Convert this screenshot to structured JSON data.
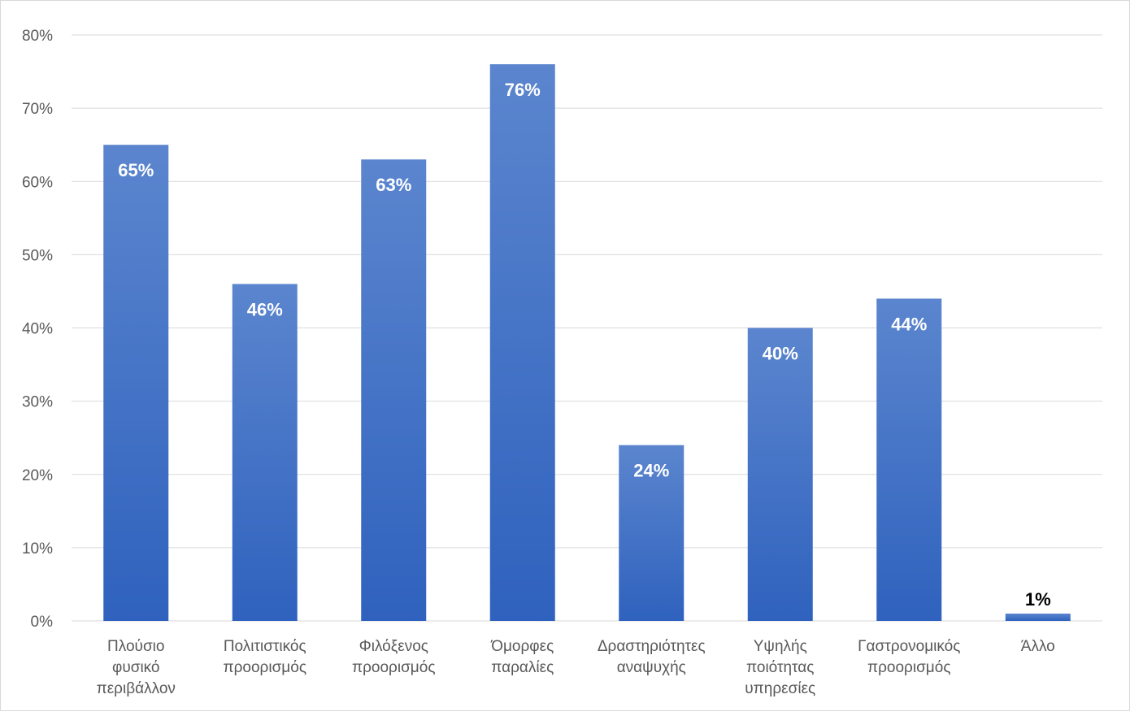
{
  "chart_data": {
    "type": "bar",
    "categories": [
      [
        "Πλούσιο",
        "φυσικό",
        "περιβάλλον"
      ],
      [
        "Πολιτιστικός",
        "προορισμός"
      ],
      [
        "Φιλόξενος",
        "προορισμός"
      ],
      [
        "Όμορφες",
        "παραλίες"
      ],
      [
        "Δραστηριότητες",
        "αναψυχής"
      ],
      [
        "Υψηλής",
        "ποιότητας",
        "υπηρεσίες"
      ],
      [
        "Γαστρονομικός",
        "προορισμός"
      ],
      [
        "Άλλο"
      ]
    ],
    "values": [
      65,
      46,
      63,
      76,
      24,
      40,
      44,
      1
    ],
    "data_labels": [
      "65%",
      "46%",
      "63%",
      "76%",
      "24%",
      "40%",
      "44%",
      "1%"
    ],
    "y_ticks": [
      "0%",
      "10%",
      "20%",
      "30%",
      "40%",
      "50%",
      "60%",
      "70%",
      "80%"
    ],
    "ylim": [
      0,
      80
    ],
    "grid": true,
    "legend": "none",
    "colors": {
      "bar_top": "#5b85ce",
      "bar_bottom": "#2f62be",
      "gridline": "#d9d9d9",
      "label_inside": "#ffffff",
      "label_outside": "#000000"
    }
  }
}
